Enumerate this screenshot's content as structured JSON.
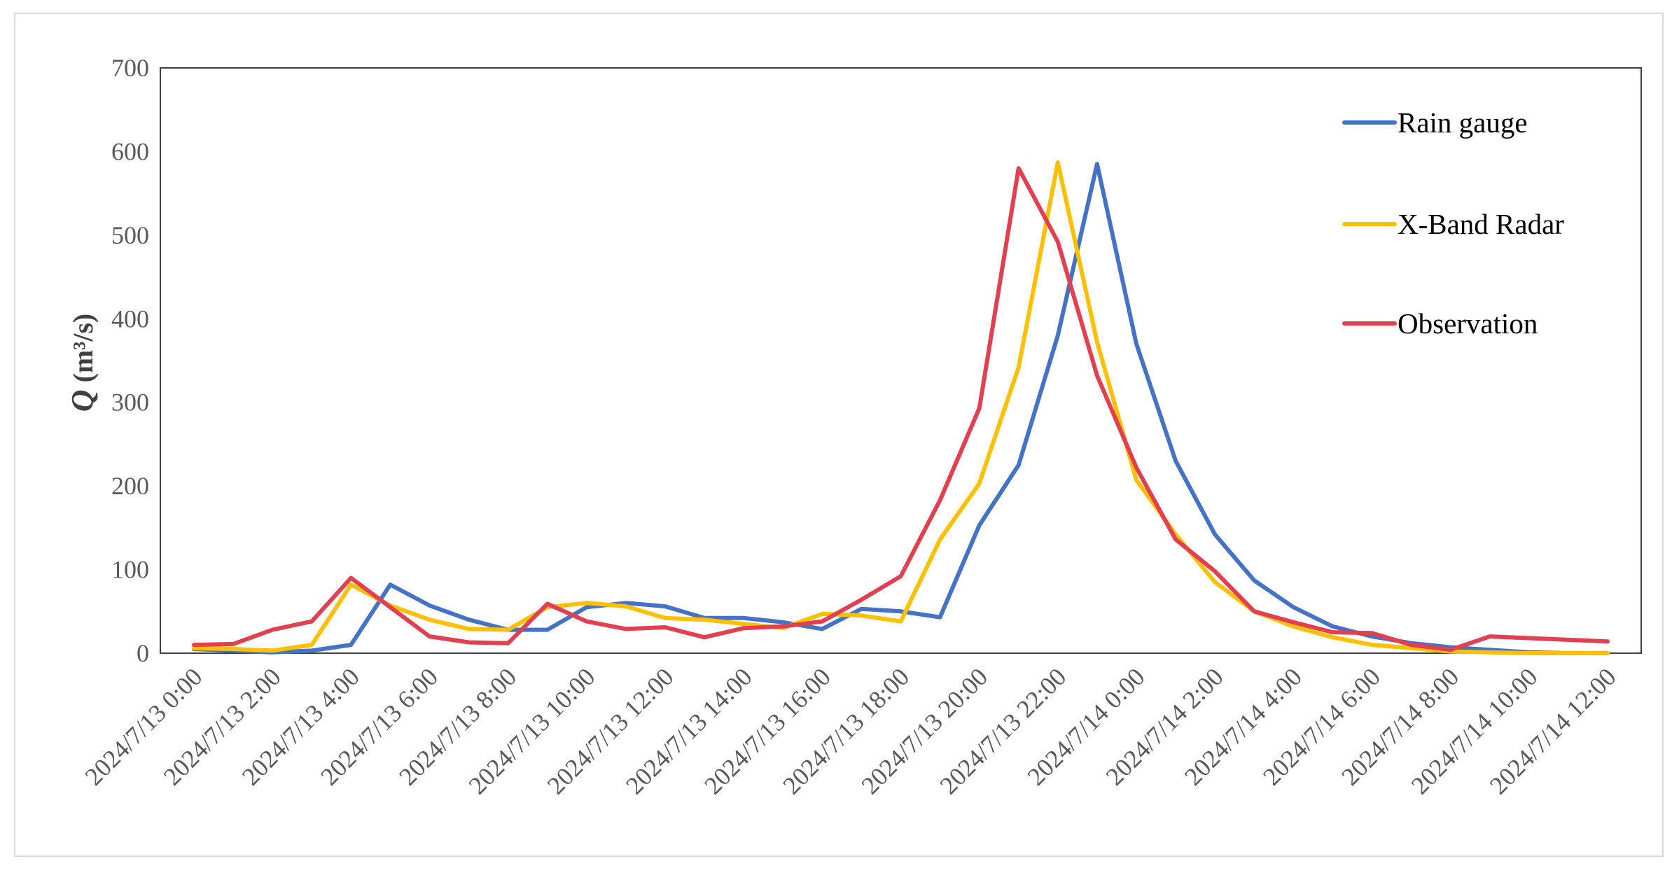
{
  "chart_data": {
    "type": "line",
    "title": "",
    "xlabel": "",
    "ylabel": "Q (m³/s)",
    "ylabel_parts": {
      "symbol": "Q",
      "unit": " (m³/s)"
    },
    "ylim": [
      0,
      700
    ],
    "yticks": [
      0,
      100,
      200,
      300,
      400,
      500,
      600,
      700
    ],
    "legend_position": "top-right",
    "grid": false,
    "x_tick_labels": [
      "2024/7/13 0:00",
      "2024/7/13 2:00",
      "2024/7/13 4:00",
      "2024/7/13 6:00",
      "2024/7/13 8:00",
      "2024/7/13 10:00",
      "2024/7/13 12:00",
      "2024/7/13 14:00",
      "2024/7/13 16:00",
      "2024/7/13 18:00",
      "2024/7/13 20:00",
      "2024/7/13 22:00",
      "2024/7/14 0:00",
      "2024/7/14 2:00",
      "2024/7/14 4:00",
      "2024/7/14 6:00",
      "2024/7/14 8:00",
      "2024/7/14 10:00",
      "2024/7/14 12:00"
    ],
    "x": [
      "2024/7/13 0:00",
      "2024/7/13 1:00",
      "2024/7/13 2:00",
      "2024/7/13 3:00",
      "2024/7/13 4:00",
      "2024/7/13 5:00",
      "2024/7/13 6:00",
      "2024/7/13 7:00",
      "2024/7/13 8:00",
      "2024/7/13 9:00",
      "2024/7/13 10:00",
      "2024/7/13 11:00",
      "2024/7/13 12:00",
      "2024/7/13 13:00",
      "2024/7/13 14:00",
      "2024/7/13 15:00",
      "2024/7/13 16:00",
      "2024/7/13 17:00",
      "2024/7/13 18:00",
      "2024/7/13 19:00",
      "2024/7/13 20:00",
      "2024/7/13 21:00",
      "2024/7/13 22:00",
      "2024/7/13 23:00",
      "2024/7/14 0:00",
      "2024/7/14 1:00",
      "2024/7/14 2:00",
      "2024/7/14 3:00",
      "2024/7/14 4:00",
      "2024/7/14 5:00",
      "2024/7/14 6:00",
      "2024/7/14 7:00",
      "2024/7/14 8:00",
      "2024/7/14 9:00",
      "2024/7/14 10:00",
      "2024/7/14 11:00",
      "2024/7/14 12:00"
    ],
    "series": [
      {
        "name": "Rain gauge",
        "color": "#4472C4",
        "values": [
          5,
          3,
          1,
          3,
          10,
          82,
          57,
          40,
          28,
          28,
          55,
          60,
          56,
          42,
          42,
          37,
          29,
          53,
          50,
          43,
          153,
          225,
          380,
          585,
          370,
          230,
          142,
          87,
          55,
          32,
          20,
          12,
          7,
          4,
          1,
          0,
          0
        ]
      },
      {
        "name": "X-Band Radar",
        "color": "#FFC000",
        "values": [
          6,
          5,
          3,
          10,
          82,
          57,
          40,
          29,
          28,
          55,
          60,
          56,
          42,
          40,
          35,
          30,
          47,
          45,
          38,
          136,
          203,
          342,
          587,
          372,
          207,
          142,
          85,
          50,
          32,
          19,
          10,
          6,
          2,
          1,
          0,
          0,
          0
        ]
      },
      {
        "name": "Observation",
        "color": "#E04050",
        "values": [
          10,
          11,
          28,
          38,
          90,
          55,
          20,
          13,
          12,
          59,
          38,
          29,
          31,
          19,
          30,
          32,
          38,
          64,
          92,
          183,
          293,
          580,
          492,
          332,
          222,
          136,
          98,
          50,
          37,
          25,
          24,
          10,
          4,
          20,
          18,
          16,
          14
        ]
      }
    ]
  }
}
